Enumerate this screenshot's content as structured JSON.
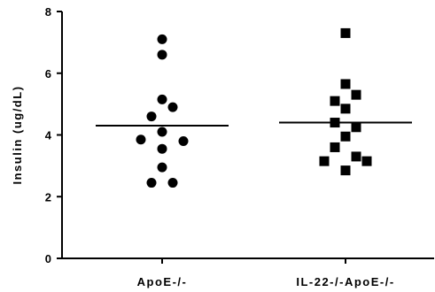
{
  "chart_data": {
    "type": "scatter",
    "title": "",
    "xlabel": "",
    "ylabel": "Insulin (ug/dL)",
    "ylim": [
      0,
      8
    ],
    "yticks": [
      0,
      2,
      4,
      6,
      8
    ],
    "grid": false,
    "categories": [
      "ApoE-/-",
      "IL-22-/-ApoE-/-"
    ],
    "series": [
      {
        "category": "ApoE-/-",
        "marker": "circle",
        "mean": 4.3,
        "points": [
          {
            "dx": 0,
            "y": 7.1
          },
          {
            "dx": 0,
            "y": 6.6
          },
          {
            "dx": 0,
            "y": 5.15
          },
          {
            "dx": 1,
            "y": 4.9
          },
          {
            "dx": -1,
            "y": 4.6
          },
          {
            "dx": 0,
            "y": 4.1
          },
          {
            "dx": -2,
            "y": 3.85
          },
          {
            "dx": 2,
            "y": 3.8
          },
          {
            "dx": 0,
            "y": 3.55
          },
          {
            "dx": 0,
            "y": 2.95
          },
          {
            "dx": -1,
            "y": 2.45
          },
          {
            "dx": 1,
            "y": 2.45
          }
        ]
      },
      {
        "category": "IL-22-/-ApoE-/-",
        "marker": "square",
        "mean": 4.4,
        "points": [
          {
            "dx": 0,
            "y": 7.3
          },
          {
            "dx": 0,
            "y": 5.65
          },
          {
            "dx": 1,
            "y": 5.3
          },
          {
            "dx": -1,
            "y": 5.1
          },
          {
            "dx": 0,
            "y": 4.85
          },
          {
            "dx": -1,
            "y": 4.4
          },
          {
            "dx": 1,
            "y": 4.25
          },
          {
            "dx": 0,
            "y": 3.95
          },
          {
            "dx": -1,
            "y": 3.6
          },
          {
            "dx": 1,
            "y": 3.3
          },
          {
            "dx": -2,
            "y": 3.15
          },
          {
            "dx": 2,
            "y": 3.15
          },
          {
            "dx": 0,
            "y": 2.85
          }
        ]
      }
    ]
  }
}
